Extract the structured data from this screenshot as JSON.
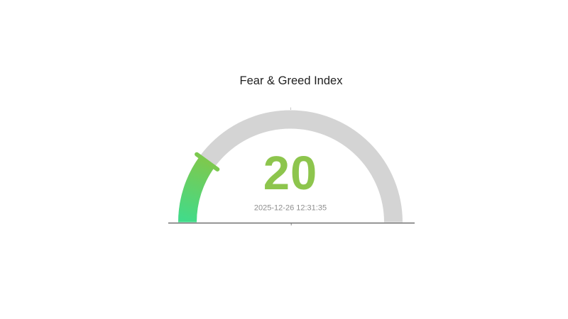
{
  "page": {
    "background_color": "#ffffff"
  },
  "chart_data": {
    "type": "gauge",
    "title": "Fear & Greed Index",
    "value": 20,
    "value_label": "20",
    "min": 0,
    "max": 100,
    "timestamp": "2025-12-26 12:31:35",
    "arc_span_degrees": 180,
    "legend": "none",
    "colors": {
      "track": "#d4d4d4",
      "gradient_start": "#41db8a",
      "gradient_end": "#7cc94f",
      "needle": "#7cc94f",
      "value_text": "#8dc54d",
      "timestamp_text": "#8e8e8e",
      "title_text": "#1f1f1f",
      "baseline": "#5a5a5a"
    }
  }
}
